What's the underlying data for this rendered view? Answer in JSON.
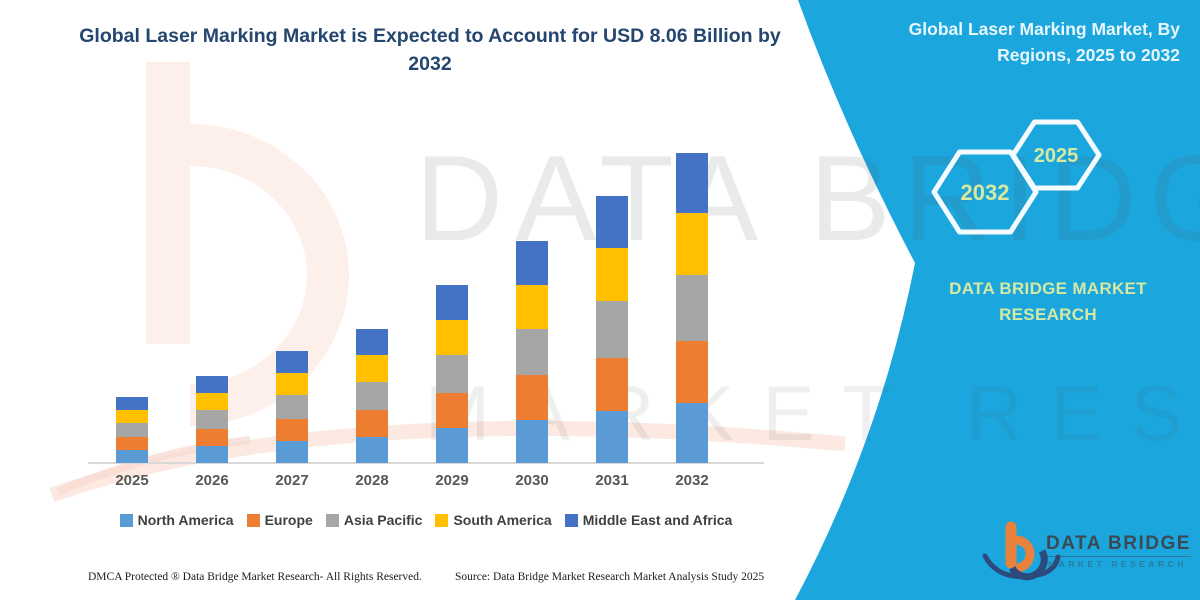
{
  "colors": {
    "panel_bg": "#1BA7DE",
    "title_text": "#24466F",
    "accent_text": "#D7E8A3",
    "panel_title_text": "#E8F7FD",
    "axis_line": "#D9D9D9",
    "legend_text": "#3F3F3F"
  },
  "header": {
    "title_lines": {
      "0": "Global Laser Marking Market is Expected to Account for USD 8.06 Billion by",
      "1": "2032"
    }
  },
  "side_panel": {
    "title_lines": {
      "0": "Global Laser Marking Market, By",
      "1": "Regions, 2025 to 2032"
    },
    "hexagons": {
      "large_label": "2032",
      "small_label": "2025"
    },
    "brand_lines": {
      "0": "DATA BRIDGE MARKET",
      "1": "RESEARCH"
    }
  },
  "watermark": {
    "row1": "DATA BRIDGE",
    "row2": "MARKET RESEARCH"
  },
  "chart_data": {
    "type": "bar",
    "stacked": true,
    "title": "Global Laser Marking Market is Expected to Account for USD 8.06 Billion by 2032",
    "unit": "USD Billion",
    "categories": [
      "2025",
      "2026",
      "2027",
      "2028",
      "2029",
      "2030",
      "2031",
      "2032"
    ],
    "series": [
      {
        "name": "North America",
        "color": "#5B9BD5",
        "values": [
          0.34,
          0.44,
          0.57,
          0.68,
          0.9,
          1.13,
          1.35,
          1.57
        ]
      },
      {
        "name": "Europe",
        "color": "#ED7D31",
        "values": [
          0.34,
          0.45,
          0.58,
          0.7,
          0.93,
          1.15,
          1.39,
          1.61
        ]
      },
      {
        "name": "Asia Pacific",
        "color": "#A6A6A6",
        "values": [
          0.36,
          0.48,
          0.61,
          0.73,
          0.97,
          1.21,
          1.46,
          1.7
        ]
      },
      {
        "name": "South America",
        "color": "#FFC000",
        "values": [
          0.34,
          0.45,
          0.58,
          0.7,
          0.93,
          1.15,
          1.39,
          1.61
        ]
      },
      {
        "name": "Middle East and Africa",
        "color": "#4472C4",
        "values": [
          0.34,
          0.44,
          0.57,
          0.67,
          0.9,
          1.13,
          1.35,
          1.57
        ]
      }
    ],
    "totals": [
      1.72,
      2.26,
      2.91,
      3.48,
      4.63,
      5.77,
      6.94,
      8.06
    ],
    "ylim": [
      0,
      8.4
    ],
    "gridlines": false,
    "y_axis_visible": false,
    "legend_position": "bottom"
  },
  "footer": {
    "left": "DMCA Protected ® Data Bridge Market Research-  All Rights Reserved.",
    "source": "Source: Data Bridge Market Research  Market Analysis Study 2025"
  },
  "logo": {
    "name": "DATA BRIDGE",
    "sub": "MARKET RESEARCH"
  }
}
